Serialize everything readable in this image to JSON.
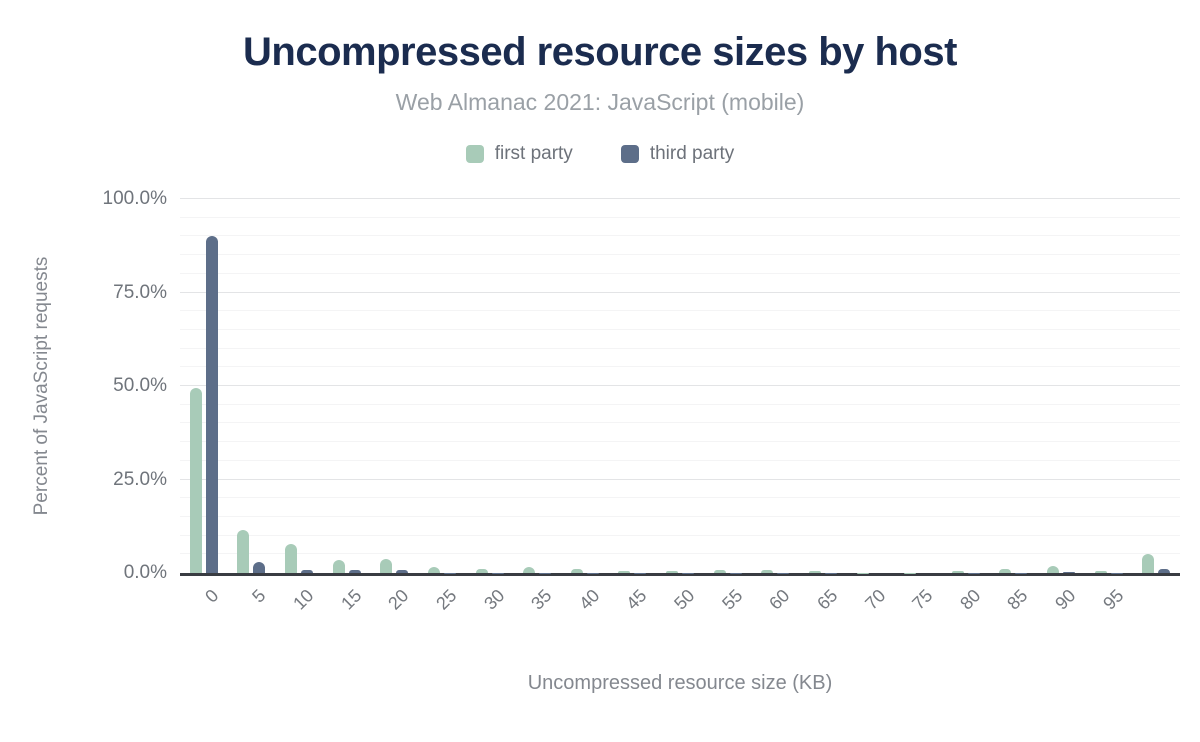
{
  "header": {
    "title": "Uncompressed resource sizes by host",
    "subtitle": "Web Almanac 2021: JavaScript (mobile)"
  },
  "legend": [
    {
      "label": "first party",
      "color": "#a8cbb8"
    },
    {
      "label": "third party",
      "color": "#5d6e89"
    }
  ],
  "axes": {
    "x_title": "Uncompressed resource size (KB)",
    "y_title": "Percent of JavaScript requests"
  },
  "chart_data": {
    "type": "bar",
    "title": "Uncompressed resource sizes by host",
    "subtitle": "Web Almanac 2021: JavaScript (mobile)",
    "xlabel": "Uncompressed resource size (KB)",
    "ylabel": "Percent of JavaScript requests",
    "categories": [
      "0",
      "5",
      "10",
      "15",
      "20",
      "25",
      "30",
      "35",
      "40",
      "45",
      "50",
      "55",
      "60",
      "65",
      "70",
      "75",
      "80",
      "85",
      "90",
      "95",
      ""
    ],
    "series": [
      {
        "name": "first party",
        "color": "#a8cbb8",
        "values": [
          49.5,
          11.5,
          7.8,
          3.5,
          3.7,
          1.6,
          1.1,
          1.5,
          1.1,
          0.6,
          0.6,
          0.7,
          0.7,
          0.6,
          0.1,
          0.1,
          0.6,
          1.1,
          1.8,
          0.6,
          5.2
        ]
      },
      {
        "name": "third party",
        "color": "#5d6e89",
        "values": [
          90.0,
          3.0,
          0.8,
          0.7,
          0.7,
          0.1,
          0.1,
          0.1,
          0.1,
          0.1,
          0.1,
          0.1,
          0.1,
          0.1,
          0.0,
          0.0,
          0.1,
          0.1,
          0.2,
          0.1,
          1.1
        ]
      }
    ],
    "ylim": [
      0,
      100
    ],
    "yticks": [
      {
        "value": 0,
        "label": "0.0%"
      },
      {
        "value": 25,
        "label": "25.0%"
      },
      {
        "value": 50,
        "label": "50.0%"
      },
      {
        "value": 75,
        "label": "75.0%"
      },
      {
        "value": 100,
        "label": "100.0%"
      }
    ],
    "grid": {
      "minor_step": 5,
      "major_step": 25
    },
    "legend_position": "top",
    "x_tick_rotation": -45
  },
  "colors": {
    "title_text": "#1b2c4f",
    "subtitle_text": "#9aa0a6",
    "axis_title_text": "#84888f",
    "tick_text": "#6f747b",
    "baseline": "#393c42",
    "grid_major": "#e3e4e6",
    "grid_minor": "#f4f4f5"
  }
}
